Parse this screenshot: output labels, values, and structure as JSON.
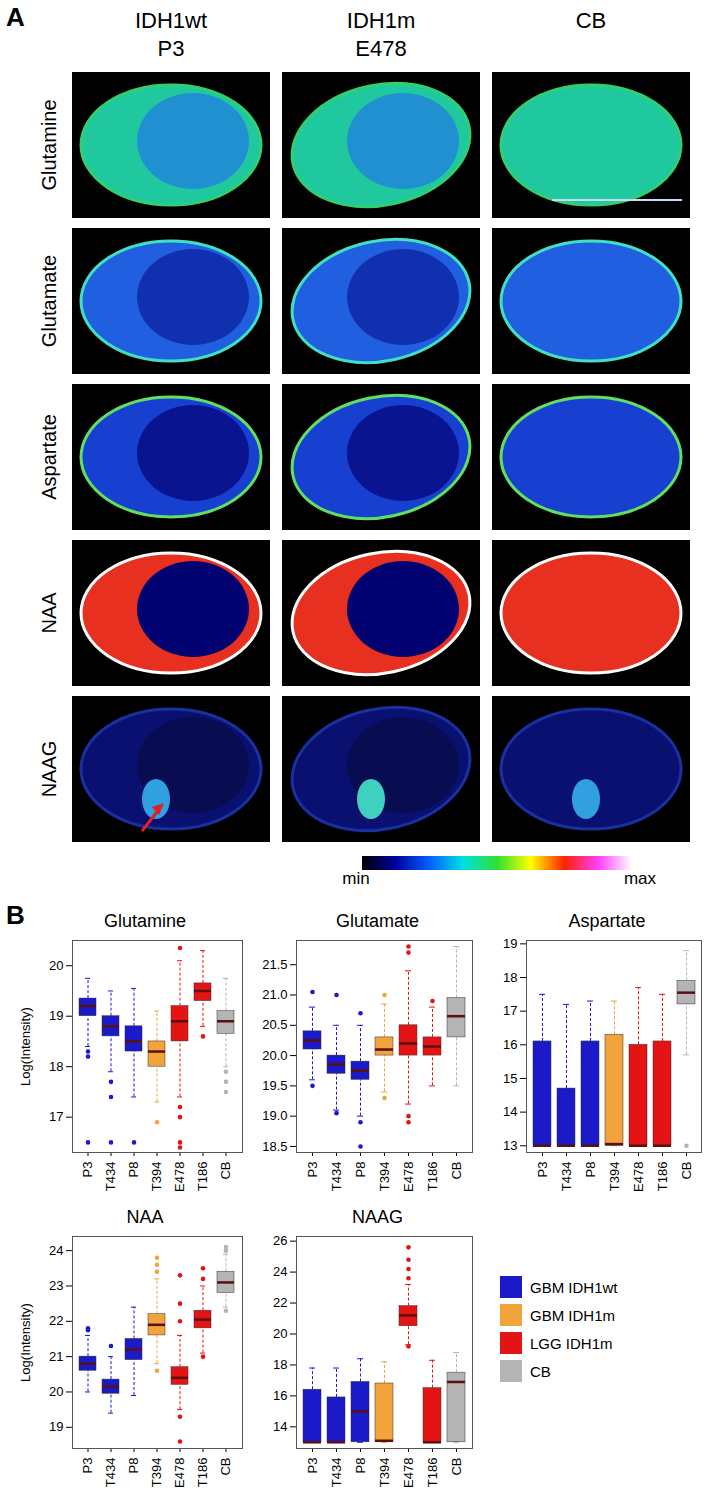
{
  "panel_a": {
    "label": "A",
    "columns": [
      [
        "IDH1wt",
        "P3"
      ],
      [
        "IDH1m",
        "E478"
      ],
      [
        "CB"
      ]
    ],
    "rows": [
      "Glutamine",
      "Glutamate",
      "Aspartate",
      "NAA",
      "NAAG"
    ],
    "colorbar": [
      "min",
      "max"
    ]
  },
  "panel_b_label": "B",
  "legend_items": [
    {
      "name": "GBM IDH1wt",
      "color": "#1a1ac8"
    },
    {
      "name": "GBM IDH1m",
      "color": "#f2a33a"
    },
    {
      "name": "LGG IDH1m",
      "color": "#e41414"
    },
    {
      "name": "CB",
      "color": "#b4b4b4"
    }
  ],
  "chart_data": [
    {
      "type": "box",
      "title": "Glutamine",
      "ylabel": "Log(Intensity)",
      "categories": [
        "P3",
        "T434",
        "P8",
        "T394",
        "E478",
        "T186",
        "CB"
      ],
      "colors": [
        "#1a1ac8",
        "#1a1ac8",
        "#1a1ac8",
        "#f2a33a",
        "#e41414",
        "#e41414",
        "#b4b4b4"
      ],
      "boxes": [
        {
          "whisker_low": 18.4,
          "q1": 19.0,
          "median": 19.2,
          "q3": 19.35,
          "whisker_high": 19.75,
          "outliers": [
            18.3,
            18.2,
            16.5
          ]
        },
        {
          "whisker_low": 17.9,
          "q1": 18.6,
          "median": 18.8,
          "q3": 19.0,
          "whisker_high": 19.5,
          "outliers": [
            17.7,
            17.4,
            16.5
          ]
        },
        {
          "whisker_low": 17.4,
          "q1": 18.3,
          "median": 18.5,
          "q3": 18.8,
          "whisker_high": 19.55,
          "outliers": [
            16.5
          ]
        },
        {
          "whisker_low": 17.3,
          "q1": 18.0,
          "median": 18.3,
          "q3": 18.5,
          "whisker_high": 19.1,
          "outliers": [
            16.9
          ]
        },
        {
          "whisker_low": 17.4,
          "q1": 18.5,
          "median": 18.9,
          "q3": 19.2,
          "whisker_high": 20.1,
          "outliers": [
            20.35,
            17.2,
            17.0,
            16.5,
            16.4
          ]
        },
        {
          "whisker_low": 18.8,
          "q1": 19.3,
          "median": 19.5,
          "q3": 19.65,
          "whisker_high": 20.3,
          "outliers": [
            18.6
          ]
        },
        {
          "whisker_low": 18.0,
          "q1": 18.65,
          "median": 18.9,
          "q3": 19.1,
          "whisker_high": 19.75,
          "outliers": [
            17.9,
            17.7,
            17.5
          ]
        }
      ],
      "ylim": [
        16.3,
        20.5
      ],
      "yticks": [
        17,
        18,
        19,
        20
      ]
    },
    {
      "type": "box",
      "title": "Glutamate",
      "categories": [
        "P3",
        "T434",
        "P8",
        "T394",
        "E478",
        "T186",
        "CB"
      ],
      "colors": [
        "#1a1ac8",
        "#1a1ac8",
        "#1a1ac8",
        "#f2a33a",
        "#e41414",
        "#e41414",
        "#b4b4b4"
      ],
      "boxes": [
        {
          "whisker_low": 19.6,
          "q1": 20.1,
          "median": 20.25,
          "q3": 20.4,
          "whisker_high": 20.8,
          "outliers": [
            21.05,
            19.5
          ]
        },
        {
          "whisker_low": 19.1,
          "q1": 19.7,
          "median": 19.85,
          "q3": 20.0,
          "whisker_high": 20.5,
          "outliers": [
            21.0,
            19.05
          ]
        },
        {
          "whisker_low": 19.0,
          "q1": 19.6,
          "median": 19.75,
          "q3": 19.9,
          "whisker_high": 20.5,
          "outliers": [
            20.7,
            18.9,
            18.5
          ]
        },
        {
          "whisker_low": 19.4,
          "q1": 20.0,
          "median": 20.1,
          "q3": 20.3,
          "whisker_high": 20.85,
          "outliers": [
            21.0,
            19.3
          ]
        },
        {
          "whisker_low": 19.2,
          "q1": 20.0,
          "median": 20.2,
          "q3": 20.5,
          "whisker_high": 21.4,
          "outliers": [
            21.8,
            21.7,
            19.0,
            18.9
          ]
        },
        {
          "whisker_low": 19.5,
          "q1": 20.0,
          "median": 20.15,
          "q3": 20.3,
          "whisker_high": 20.8,
          "outliers": [
            20.9
          ]
        },
        {
          "whisker_low": 19.5,
          "q1": 20.3,
          "median": 20.65,
          "q3": 20.95,
          "whisker_high": 21.8,
          "outliers": []
        }
      ],
      "ylim": [
        18.4,
        21.9
      ],
      "yticks": [
        18.5,
        {
          "value": 19,
          "label": "19.0"
        },
        19.5,
        {
          "value": 20,
          "label": "20.0"
        },
        20.5,
        {
          "value": 21,
          "label": "21.0"
        },
        21.5
      ]
    },
    {
      "type": "box",
      "title": "Aspartate",
      "categories": [
        "P3",
        "T434",
        "P8",
        "T394",
        "E478",
        "T186",
        "CB"
      ],
      "colors": [
        "#1a1ac8",
        "#1a1ac8",
        "#1a1ac8",
        "#f2a33a",
        "#e41414",
        "#e41414",
        "#b4b4b4"
      ],
      "boxes": [
        {
          "whisker_low": 13,
          "q1": 13,
          "median": 13,
          "q3": 16.1,
          "whisker_high": 17.5,
          "outliers": []
        },
        {
          "whisker_low": 13,
          "q1": 13,
          "median": 13,
          "q3": 14.7,
          "whisker_high": 17.2,
          "outliers": []
        },
        {
          "whisker_low": 13,
          "q1": 13,
          "median": 13,
          "q3": 16.1,
          "whisker_high": 17.3,
          "outliers": []
        },
        {
          "whisker_low": 13,
          "q1": 13,
          "median": 13.05,
          "q3": 16.3,
          "whisker_high": 17.3,
          "outliers": []
        },
        {
          "whisker_low": 13,
          "q1": 13,
          "median": 13,
          "q3": 16.0,
          "whisker_high": 17.7,
          "outliers": []
        },
        {
          "whisker_low": 13,
          "q1": 13,
          "median": 13,
          "q3": 16.1,
          "whisker_high": 17.5,
          "outliers": []
        },
        {
          "whisker_low": 15.7,
          "q1": 17.2,
          "median": 17.55,
          "q3": 17.9,
          "whisker_high": 18.8,
          "outliers": [
            13.0
          ]
        }
      ],
      "ylim": [
        12.8,
        19.1
      ],
      "yticks": [
        13,
        14,
        15,
        16,
        17,
        18,
        19
      ]
    },
    {
      "type": "box",
      "title": "NAA",
      "ylabel": "Log(Intensity)",
      "categories": [
        "P3",
        "T434",
        "P8",
        "T394",
        "E478",
        "T186",
        "CB"
      ],
      "colors": [
        "#1a1ac8",
        "#1a1ac8",
        "#1a1ac8",
        "#f2a33a",
        "#e41414",
        "#e41414",
        "#b4b4b4"
      ],
      "boxes": [
        {
          "whisker_low": 20.0,
          "q1": 20.6,
          "median": 20.8,
          "q3": 21.0,
          "whisker_high": 21.6,
          "outliers": [
            21.75,
            21.8
          ]
        },
        {
          "whisker_low": 19.4,
          "q1": 19.95,
          "median": 20.15,
          "q3": 20.35,
          "whisker_high": 21.0,
          "outliers": [
            21.3
          ]
        },
        {
          "whisker_low": 19.9,
          "q1": 20.9,
          "median": 21.2,
          "q3": 21.5,
          "whisker_high": 22.4,
          "outliers": []
        },
        {
          "whisker_low": 20.8,
          "q1": 21.6,
          "median": 21.9,
          "q3": 22.2,
          "whisker_high": 23.2,
          "outliers": [
            23.4,
            23.6,
            23.8,
            20.6
          ]
        },
        {
          "whisker_low": 19.5,
          "q1": 20.2,
          "median": 20.4,
          "q3": 20.7,
          "whisker_high": 21.6,
          "outliers": [
            22.0,
            22.5,
            23.3,
            19.3,
            18.6
          ]
        },
        {
          "whisker_low": 21.1,
          "q1": 21.8,
          "median": 22.05,
          "q3": 22.3,
          "whisker_high": 23.0,
          "outliers": [
            23.2,
            23.5,
            21.0
          ]
        },
        {
          "whisker_low": 22.4,
          "q1": 22.8,
          "median": 23.1,
          "q3": 23.4,
          "whisker_high": 23.9,
          "outliers": [
            24.0,
            24.1,
            22.3
          ]
        }
      ],
      "ylim": [
        18.4,
        24.4
      ],
      "yticks": [
        19,
        20,
        21,
        22,
        23,
        24
      ]
    },
    {
      "type": "box",
      "title": "NAAG",
      "categories": [
        "P3",
        "T434",
        "P8",
        "T394",
        "E478",
        "T186",
        "CB"
      ],
      "colors": [
        "#1a1ac8",
        "#1a1ac8",
        "#1a1ac8",
        "#f2a33a",
        "#e41414",
        "#e41414",
        "#b4b4b4"
      ],
      "boxes": [
        {
          "whisker_low": 13,
          "q1": 13,
          "median": 13,
          "q3": 16.4,
          "whisker_high": 17.8,
          "outliers": []
        },
        {
          "whisker_low": 13,
          "q1": 13,
          "median": 13,
          "q3": 15.9,
          "whisker_high": 17.8,
          "outliers": []
        },
        {
          "whisker_low": 13,
          "q1": 13,
          "median": 15.0,
          "q3": 16.9,
          "whisker_high": 18.4,
          "outliers": []
        },
        {
          "whisker_low": 13,
          "q1": 13,
          "median": 13.1,
          "q3": 16.8,
          "whisker_high": 18.2,
          "outliers": []
        },
        {
          "whisker_low": 19.3,
          "q1": 20.5,
          "median": 21.2,
          "q3": 21.8,
          "whisker_high": 23.2,
          "outliers": [
            23.6,
            24.2,
            24.8,
            25.6,
            19.2
          ]
        },
        {
          "whisker_low": 13,
          "q1": 13,
          "median": 13,
          "q3": 16.5,
          "whisker_high": 18.3,
          "outliers": []
        },
        {
          "whisker_low": 13,
          "q1": 13,
          "median": 16.9,
          "q3": 17.5,
          "whisker_high": 18.8,
          "outliers": []
        }
      ],
      "ylim": [
        12.6,
        26.3
      ],
      "yticks": [
        14,
        16,
        18,
        20,
        22,
        24,
        26
      ]
    }
  ]
}
